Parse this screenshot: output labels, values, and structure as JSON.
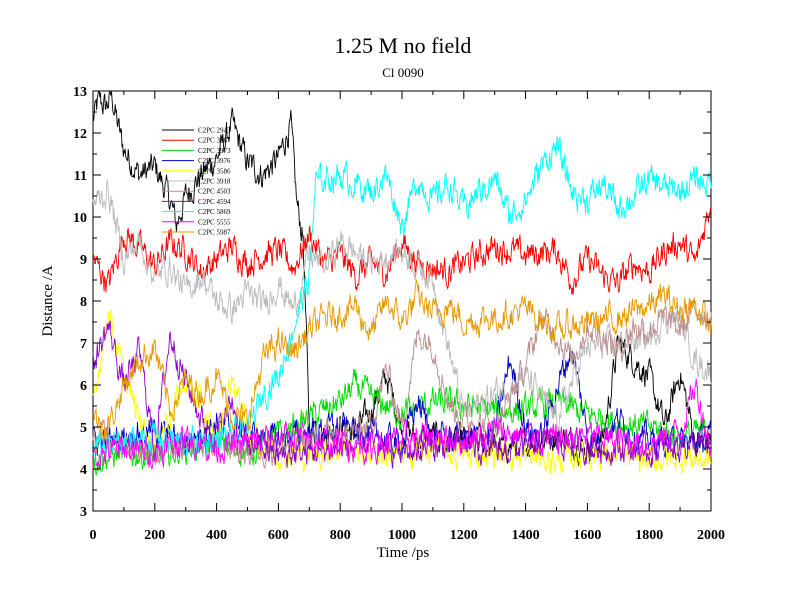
{
  "chart_data": {
    "type": "line",
    "title": "1.25 M no field",
    "subtitle": "Cl 0090",
    "xlabel": "Time /ps",
    "ylabel": "Distance /A",
    "xlim": [
      0,
      2000
    ],
    "ylim": [
      3,
      13
    ],
    "xticks": [
      0,
      200,
      400,
      600,
      800,
      1000,
      1200,
      1400,
      1600,
      1800,
      2000
    ],
    "yticks": [
      3,
      4,
      5,
      6,
      7,
      8,
      9,
      10,
      11,
      12,
      13
    ],
    "xtick_labels": [
      "0",
      "200",
      "400",
      "600",
      "800",
      "1000",
      "1200",
      "1400",
      "1600",
      "1800",
      "2000"
    ],
    "ytick_labels": [
      "3",
      "4",
      "5",
      "6",
      "7",
      "8",
      "9",
      "10",
      "11",
      "12",
      "13"
    ],
    "legend_position": "upper-left",
    "series": [
      {
        "name": "C2PC 2943",
        "color": "#000000",
        "x": [
          0,
          20,
          40,
          60,
          80,
          100,
          150,
          200,
          250,
          270,
          300,
          350,
          400,
          450,
          500,
          550,
          600,
          640,
          660,
          680,
          700,
          750,
          800,
          850,
          900,
          950,
          1000,
          1050,
          1100,
          1150,
          1200,
          1300,
          1400,
          1500,
          1600,
          1650,
          1700,
          1750,
          1800,
          1850,
          1900,
          1950,
          2000
        ],
        "values": [
          12.3,
          12.8,
          12.6,
          12.9,
          12.2,
          11.6,
          11.0,
          11.2,
          10.4,
          9.8,
          10.5,
          11.0,
          11.4,
          12.2,
          11.3,
          11.0,
          11.4,
          12.2,
          10.3,
          9.5,
          5.0,
          4.8,
          5.0,
          4.9,
          5.4,
          6.2,
          5.0,
          4.7,
          4.8,
          4.6,
          4.7,
          4.5,
          4.6,
          4.8,
          4.5,
          4.7,
          7.0,
          6.6,
          6.2,
          5.0,
          6.3,
          4.6,
          4.7
        ]
      },
      {
        "name": "C2PC 3867",
        "color": "#ff0000",
        "x": [
          0,
          50,
          100,
          150,
          200,
          250,
          300,
          350,
          400,
          450,
          500,
          550,
          600,
          650,
          700,
          750,
          800,
          850,
          900,
          950,
          1000,
          1050,
          1100,
          1150,
          1200,
          1300,
          1400,
          1500,
          1550,
          1600,
          1650,
          1700,
          1750,
          1800,
          1850,
          1900,
          1950,
          2000
        ],
        "values": [
          9.0,
          8.4,
          9.6,
          9.3,
          8.8,
          9.4,
          9.2,
          8.7,
          9.0,
          9.3,
          8.9,
          9.1,
          9.2,
          8.8,
          9.6,
          8.9,
          9.1,
          8.6,
          8.9,
          8.7,
          9.4,
          8.9,
          8.8,
          8.7,
          8.9,
          9.3,
          9.1,
          9.2,
          8.5,
          9.0,
          8.6,
          8.4,
          8.9,
          8.7,
          9.2,
          9.4,
          8.9,
          10.4
        ]
      },
      {
        "name": "C2PC 3973",
        "color": "#00dd00",
        "x": [
          0,
          100,
          200,
          300,
          400,
          500,
          600,
          700,
          800,
          850,
          900,
          1000,
          1100,
          1200,
          1300,
          1400,
          1500,
          1600,
          1700,
          1800,
          1900,
          2000
        ],
        "values": [
          4.2,
          4.4,
          4.3,
          4.5,
          4.6,
          4.4,
          4.8,
          5.2,
          5.6,
          6.0,
          5.7,
          5.3,
          5.6,
          5.5,
          5.4,
          5.4,
          5.6,
          5.3,
          5.1,
          5.0,
          4.8,
          4.9
        ]
      },
      {
        "name": "C2PC 3976",
        "color": "#0000cc",
        "x": [
          0,
          100,
          200,
          300,
          400,
          500,
          600,
          700,
          800,
          900,
          1000,
          1050,
          1100,
          1200,
          1300,
          1350,
          1400,
          1450,
          1500,
          1550,
          1600,
          1650,
          1700,
          1750,
          1800,
          1900,
          2000
        ],
        "values": [
          4.6,
          4.8,
          4.9,
          4.6,
          5.1,
          4.8,
          4.7,
          4.9,
          5.0,
          4.8,
          4.6,
          5.6,
          4.8,
          4.7,
          4.9,
          6.6,
          5.0,
          4.7,
          5.9,
          6.9,
          4.8,
          4.7,
          5.2,
          4.8,
          4.7,
          4.6,
          4.7
        ]
      },
      {
        "name": "C2PC 3586",
        "color": "#ffff00",
        "x": [
          0,
          50,
          100,
          150,
          200,
          250,
          300,
          350,
          400,
          450,
          500,
          550,
          600,
          700,
          800,
          900,
          1000,
          1100,
          1200,
          1300,
          1400,
          1500,
          1600,
          1700,
          1800,
          1900,
          2000
        ],
        "values": [
          5.6,
          7.8,
          6.2,
          5.2,
          4.6,
          5.3,
          6.1,
          5.5,
          4.6,
          6.2,
          4.9,
          4.6,
          4.4,
          4.3,
          4.5,
          4.4,
          4.3,
          4.5,
          4.3,
          4.4,
          4.3,
          4.2,
          4.4,
          4.3,
          4.2,
          4.3,
          4.2
        ]
      },
      {
        "name": "C2PC 3918",
        "color": "#bbbbbb",
        "x": [
          0,
          50,
          100,
          150,
          200,
          250,
          300,
          350,
          400,
          450,
          500,
          550,
          600,
          650,
          700,
          750,
          800,
          900,
          1000,
          1100,
          1200,
          1300,
          1400,
          1500,
          1600,
          1700,
          1800,
          1850,
          1900,
          1950,
          2000
        ],
        "values": [
          10.3,
          10.6,
          9.0,
          9.4,
          8.6,
          8.8,
          8.2,
          8.6,
          8.0,
          7.8,
          8.2,
          7.9,
          8.4,
          7.8,
          9.1,
          8.8,
          9.4,
          8.9,
          9.2,
          8.5,
          5.3,
          5.8,
          6.2,
          5.2,
          6.9,
          7.0,
          7.1,
          7.6,
          7.6,
          6.6,
          6.3
        ]
      },
      {
        "name": "C2PC 4503",
        "color": "#bc8f8f",
        "x": [
          0,
          100,
          200,
          300,
          400,
          500,
          600,
          700,
          800,
          900,
          950,
          1000,
          1050,
          1100,
          1150,
          1200,
          1300,
          1400,
          1450,
          1500,
          1550,
          1600,
          1650,
          1700,
          1750,
          1800,
          1850,
          1900,
          1950,
          2000
        ],
        "values": [
          4.8,
          4.6,
          4.4,
          4.5,
          4.6,
          4.4,
          4.5,
          4.7,
          4.8,
          5.0,
          6.4,
          5.0,
          7.2,
          7.0,
          5.6,
          5.2,
          5.0,
          6.4,
          7.6,
          7.2,
          6.6,
          7.4,
          7.2,
          6.8,
          7.4,
          7.3,
          7.6,
          7.3,
          7.8,
          7.6
        ]
      },
      {
        "name": "C2PC 4594",
        "color": "#9400d3",
        "x": [
          0,
          50,
          100,
          150,
          200,
          250,
          300,
          350,
          400,
          450,
          500,
          550,
          600,
          700,
          800,
          900,
          1000,
          1100,
          1200,
          1300,
          1400,
          1500,
          1600,
          1700,
          1800,
          1900,
          2000
        ],
        "values": [
          6.5,
          7.4,
          6.0,
          6.8,
          4.5,
          7.2,
          6.1,
          5.2,
          4.8,
          5.6,
          4.6,
          4.5,
          4.3,
          4.4,
          4.5,
          4.6,
          4.4,
          4.5,
          4.6,
          4.4,
          4.5,
          4.7,
          4.5,
          4.5,
          4.4,
          4.6,
          4.5
        ]
      },
      {
        "name": "C2PC 5869",
        "color": "#00ffff",
        "x": [
          0,
          100,
          200,
          300,
          400,
          500,
          550,
          600,
          650,
          700,
          720,
          750,
          800,
          850,
          900,
          950,
          1000,
          1050,
          1100,
          1150,
          1200,
          1250,
          1300,
          1350,
          1400,
          1450,
          1500,
          1550,
          1600,
          1650,
          1700,
          1750,
          1800,
          1850,
          1900,
          1950,
          2000
        ],
        "values": [
          4.5,
          4.6,
          4.8,
          4.6,
          4.7,
          4.9,
          5.8,
          6.2,
          7.4,
          8.6,
          10.8,
          10.9,
          11.0,
          10.8,
          10.6,
          11.0,
          9.8,
          10.9,
          10.4,
          10.8,
          10.2,
          10.6,
          10.9,
          10.0,
          10.4,
          11.2,
          11.7,
          10.6,
          10.4,
          10.8,
          10.2,
          10.5,
          10.9,
          10.7,
          10.6,
          10.9,
          10.8
        ]
      },
      {
        "name": "C2PC 5555",
        "color": "#ff00ff",
        "x": [
          0,
          100,
          200,
          300,
          400,
          500,
          600,
          700,
          800,
          900,
          1000,
          1100,
          1200,
          1300,
          1400,
          1500,
          1600,
          1700,
          1800,
          1900,
          1950,
          2000
        ],
        "values": [
          4.3,
          4.5,
          4.4,
          4.7,
          4.5,
          4.6,
          4.8,
          4.7,
          4.6,
          4.5,
          4.7,
          4.8,
          4.7,
          4.9,
          4.8,
          4.7,
          4.8,
          4.7,
          4.6,
          4.9,
          6.0,
          4.5
        ]
      },
      {
        "name": "C2PC 5987",
        "color": "#e69900",
        "x": [
          0,
          50,
          100,
          150,
          200,
          250,
          300,
          350,
          400,
          450,
          500,
          550,
          600,
          650,
          700,
          750,
          800,
          850,
          900,
          950,
          1000,
          1050,
          1100,
          1150,
          1200,
          1300,
          1400,
          1500,
          1600,
          1700,
          1800,
          1850,
          1900,
          1950,
          2000
        ],
        "values": [
          5.2,
          5.0,
          6.0,
          6.6,
          6.9,
          5.4,
          6.1,
          5.8,
          6.2,
          5.3,
          5.1,
          6.6,
          7.0,
          6.8,
          7.3,
          7.6,
          7.7,
          7.9,
          7.2,
          8.0,
          7.5,
          8.1,
          7.7,
          7.9,
          7.5,
          7.6,
          7.8,
          7.3,
          7.5,
          7.6,
          7.9,
          8.1,
          7.8,
          7.9,
          7.4
        ]
      }
    ]
  }
}
